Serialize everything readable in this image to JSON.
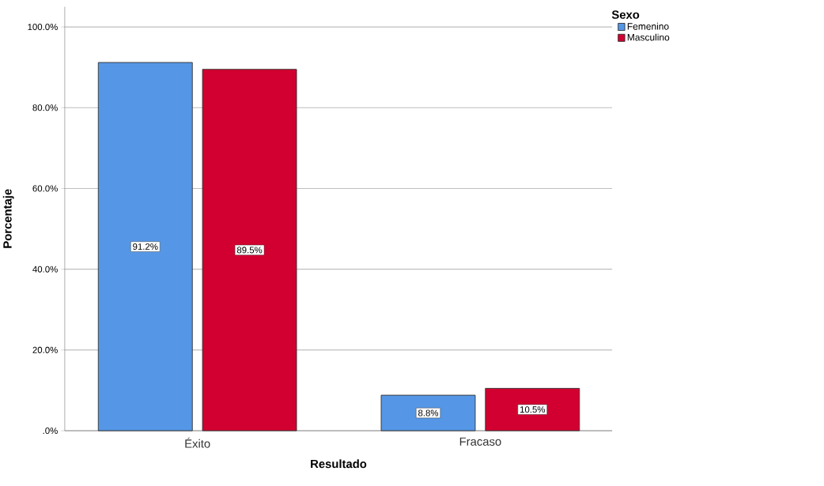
{
  "chart_data": {
    "type": "bar",
    "xlabel": "Resultado",
    "ylabel": "Porcentaje",
    "legend_title": "Sexo",
    "categories": [
      "Éxito",
      "Fracaso"
    ],
    "series": [
      {
        "name": "Femenino",
        "color": "#5597e6",
        "values": [
          91.2,
          8.8
        ],
        "value_labels": [
          "91.2%",
          "8.8%"
        ]
      },
      {
        "name": "Masculino",
        "color": "#d20030",
        "values": [
          89.5,
          10.5
        ],
        "value_labels": [
          "89.5%",
          "10.5%"
        ]
      }
    ],
    "ylim": [
      0,
      105
    ],
    "yticks": [
      {
        "value": 0,
        "label": ".0%"
      },
      {
        "value": 20,
        "label": "20.0%"
      },
      {
        "value": 40,
        "label": "40.0%"
      },
      {
        "value": 60,
        "label": "60.0%"
      },
      {
        "value": 80,
        "label": "80.0%"
      },
      {
        "value": 100,
        "label": "100.0%"
      }
    ],
    "grid": "y",
    "legend": "top right"
  }
}
